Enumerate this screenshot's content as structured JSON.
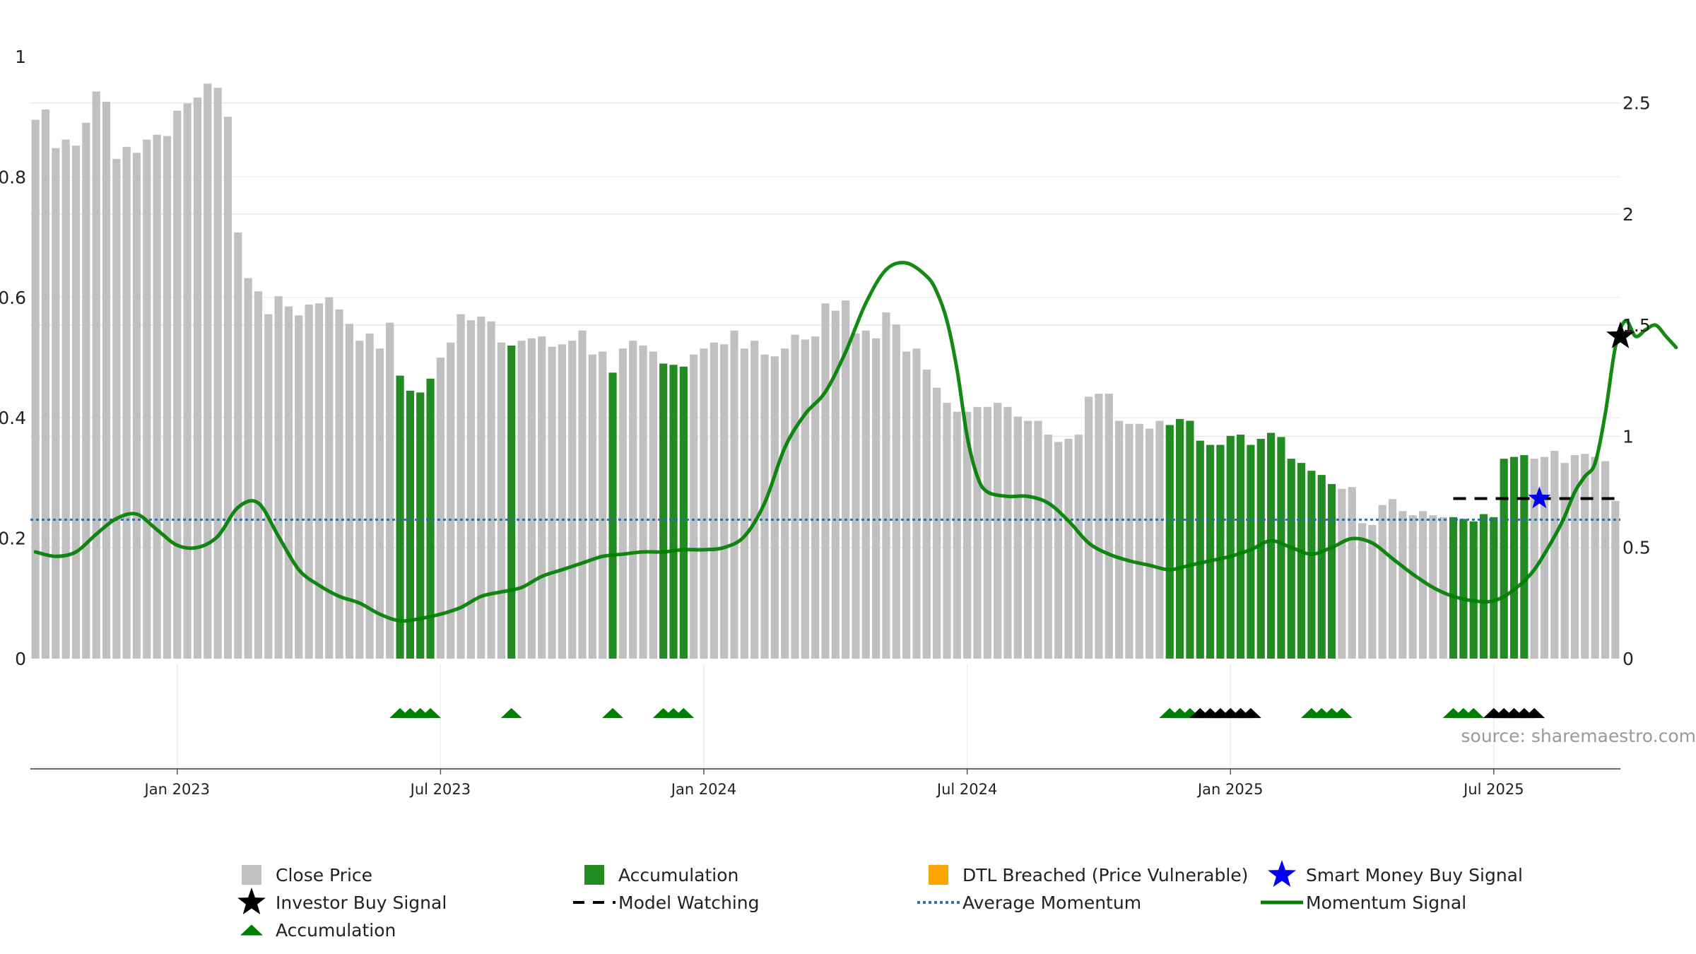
{
  "chart_data": {
    "type": "bar",
    "source": "source: sharemaestro.com",
    "left_axis": {
      "ylim": [
        0,
        1
      ],
      "ticks": [
        "0",
        "0.2",
        "0.4",
        "0.6",
        "0.8",
        "1"
      ],
      "tick_values": [
        0,
        0.2,
        0.4,
        0.6,
        0.8,
        1
      ]
    },
    "right_axis": {
      "ylim": [
        0,
        2.75
      ],
      "ticks": [
        "0",
        "0.5",
        "1",
        "1.5",
        "2",
        "2.5"
      ],
      "tick_values": [
        0,
        0.5,
        1,
        1.5,
        2,
        2.5
      ]
    },
    "x_axis": {
      "ticks": [
        "Jan 2023",
        "Jul 2023",
        "Jan 2024",
        "Jul 2024",
        "Jan 2025",
        "Jul 2025"
      ],
      "tick_positions": [
        14.5,
        40.5,
        66.5,
        92.5,
        118.5,
        144.5
      ],
      "n_weeks": 157
    },
    "grid": true,
    "legend_placement": "bottom",
    "colors": {
      "close_price": "#c0c0c0",
      "accumulation": "#228b22",
      "dtl_breached": "#ffa500",
      "smart_money": "#0000ee",
      "investor_buy": "#000000",
      "average_momentum": "#2f6fa8",
      "momentum": "#008000"
    },
    "close_price": [
      0.895,
      0.912,
      0.848,
      0.862,
      0.852,
      0.89,
      0.942,
      0.925,
      0.83,
      0.85,
      0.84,
      0.862,
      0.87,
      0.868,
      0.91,
      0.922,
      0.932,
      0.955,
      0.948,
      0.9,
      0.708,
      0.632,
      0.61,
      0.572,
      0.602,
      0.585,
      0.57,
      0.588,
      0.59,
      0.6,
      0.58,
      0.556,
      0.528,
      0.54,
      0.515,
      0.558,
      0.47,
      0.445,
      0.442,
      0.465,
      0.5,
      0.525,
      0.572,
      0.562,
      0.568,
      0.56,
      0.525,
      0.52,
      0.528,
      0.532,
      0.535,
      0.518,
      0.522,
      0.528,
      0.545,
      0.505,
      0.51,
      0.475,
      0.515,
      0.528,
      0.52,
      0.51,
      0.49,
      0.488,
      0.485,
      0.505,
      0.515,
      0.525,
      0.522,
      0.545,
      0.515,
      0.528,
      0.505,
      0.502,
      0.515,
      0.538,
      0.53,
      0.535,
      0.59,
      0.578,
      0.595,
      0.54,
      0.545,
      0.532,
      0.575,
      0.555,
      0.51,
      0.515,
      0.48,
      0.45,
      0.425,
      0.41,
      0.41,
      0.418,
      0.418,
      0.425,
      0.418,
      0.402,
      0.395,
      0.395,
      0.372,
      0.36,
      0.365,
      0.372,
      0.435,
      0.44,
      0.44,
      0.395,
      0.39,
      0.39,
      0.382,
      0.395,
      0.388,
      0.398,
      0.395,
      0.362,
      0.355,
      0.355,
      0.37,
      0.372,
      0.355,
      0.365,
      0.375,
      0.368,
      0.332,
      0.325,
      0.312,
      0.305,
      0.29,
      0.282,
      0.285,
      0.225,
      0.222,
      0.255,
      0.265,
      0.245,
      0.238,
      0.245,
      0.238,
      0.235,
      0.235,
      0.232,
      0.228,
      0.24,
      0.235,
      0.332,
      0.335,
      0.338,
      0.332,
      0.335,
      0.345,
      0.325,
      0.338,
      0.34,
      0.335,
      0.328,
      0.262
    ],
    "accumulation_bars": [
      36,
      37,
      38,
      39,
      47,
      57,
      62,
      63,
      64,
      112,
      113,
      114,
      115,
      116,
      117,
      118,
      119,
      120,
      121,
      122,
      123,
      124,
      125,
      126,
      127,
      128,
      140,
      141,
      142,
      143,
      144,
      145,
      146,
      147
    ],
    "accumulation_triangles": [
      36,
      37,
      38,
      39,
      47,
      57,
      62,
      63,
      64,
      112,
      113,
      114,
      126,
      127,
      128,
      129,
      140,
      141,
      142
    ],
    "black_triangles": [
      115,
      116,
      117,
      118,
      119,
      120,
      144,
      145,
      146,
      147,
      148
    ],
    "model_watching": {
      "from": 140,
      "to": 157,
      "value": 0.72
    },
    "average_momentum": 0.625,
    "momentum_anchors": [
      [
        0,
        0.48
      ],
      [
        2,
        0.46
      ],
      [
        4,
        0.48
      ],
      [
        6,
        0.56
      ],
      [
        8,
        0.63
      ],
      [
        10,
        0.65
      ],
      [
        12,
        0.58
      ],
      [
        14,
        0.51
      ],
      [
        16,
        0.5
      ],
      [
        18,
        0.55
      ],
      [
        20,
        0.68
      ],
      [
        22,
        0.7
      ],
      [
        24,
        0.55
      ],
      [
        26,
        0.4
      ],
      [
        28,
        0.33
      ],
      [
        30,
        0.28
      ],
      [
        32,
        0.25
      ],
      [
        34,
        0.2
      ],
      [
        36,
        0.17
      ],
      [
        38,
        0.18
      ],
      [
        40,
        0.2
      ],
      [
        42,
        0.23
      ],
      [
        44,
        0.28
      ],
      [
        46,
        0.3
      ],
      [
        48,
        0.32
      ],
      [
        50,
        0.37
      ],
      [
        52,
        0.4
      ],
      [
        54,
        0.43
      ],
      [
        56,
        0.46
      ],
      [
        58,
        0.47
      ],
      [
        60,
        0.48
      ],
      [
        62,
        0.48
      ],
      [
        64,
        0.49
      ],
      [
        66,
        0.49
      ],
      [
        68,
        0.5
      ],
      [
        70,
        0.55
      ],
      [
        72,
        0.7
      ],
      [
        74,
        0.95
      ],
      [
        76,
        1.1
      ],
      [
        78,
        1.2
      ],
      [
        80,
        1.38
      ],
      [
        82,
        1.6
      ],
      [
        84,
        1.75
      ],
      [
        86,
        1.78
      ],
      [
        88,
        1.72
      ],
      [
        89,
        1.65
      ],
      [
        90,
        1.52
      ],
      [
        91,
        1.3
      ],
      [
        92,
        1.0
      ],
      [
        93,
        0.82
      ],
      [
        94,
        0.75
      ],
      [
        96,
        0.73
      ],
      [
        98,
        0.73
      ],
      [
        100,
        0.7
      ],
      [
        102,
        0.62
      ],
      [
        104,
        0.52
      ],
      [
        106,
        0.47
      ],
      [
        108,
        0.44
      ],
      [
        110,
        0.42
      ],
      [
        112,
        0.4
      ],
      [
        114,
        0.42
      ],
      [
        116,
        0.44
      ],
      [
        118,
        0.46
      ],
      [
        120,
        0.49
      ],
      [
        122,
        0.53
      ],
      [
        124,
        0.5
      ],
      [
        126,
        0.47
      ],
      [
        128,
        0.5
      ],
      [
        130,
        0.54
      ],
      [
        132,
        0.52
      ],
      [
        134,
        0.45
      ],
      [
        136,
        0.38
      ],
      [
        138,
        0.32
      ],
      [
        140,
        0.28
      ],
      [
        142,
        0.26
      ],
      [
        144,
        0.26
      ],
      [
        146,
        0.31
      ],
      [
        148,
        0.4
      ],
      [
        150,
        0.55
      ],
      [
        151,
        0.64
      ],
      [
        152,
        0.75
      ],
      [
        153,
        0.82
      ],
      [
        154,
        0.88
      ],
      [
        155,
        1.1
      ],
      [
        156,
        1.4
      ],
      [
        157,
        1.52
      ],
      [
        158,
        1.45
      ],
      [
        159,
        1.48
      ],
      [
        160,
        1.5
      ],
      [
        161,
        1.45
      ],
      [
        162,
        1.4
      ]
    ],
    "investor_buy_signal": {
      "week": 156.5,
      "value": 1.45
    },
    "smart_money_buy_signal": {
      "week": 148.5,
      "value": 0.72
    }
  },
  "legend": [
    {
      "label": "Close Price",
      "icon": "gray-square"
    },
    {
      "label": "Accumulation",
      "icon": "green-square"
    },
    {
      "label": "DTL Breached (Price Vulnerable)",
      "icon": "orange-square"
    },
    {
      "label": "Smart Money Buy Signal",
      "icon": "blue-star"
    },
    {
      "label": "Investor Buy Signal",
      "icon": "black-star"
    },
    {
      "label": "Model Watching",
      "icon": "black-dash"
    },
    {
      "label": "Average Momentum",
      "icon": "blue-dotted"
    },
    {
      "label": "Momentum Signal",
      "icon": "green-line"
    },
    {
      "label": "Accumulation",
      "icon": "green-triangle"
    }
  ]
}
